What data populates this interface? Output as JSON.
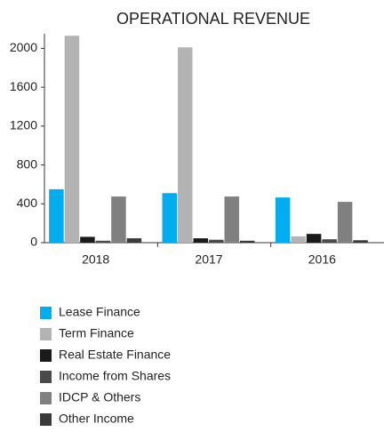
{
  "chart_data": {
    "type": "bar",
    "title": "OPERATIONAL REVENUE",
    "categories": [
      "2018",
      "2017",
      "2016"
    ],
    "series": [
      {
        "name": "Lease Finance",
        "color": "#00aeef",
        "values": [
          550,
          510,
          465
        ]
      },
      {
        "name": "Term Finance",
        "color": "#b3b3b3",
        "values": [
          2130,
          2010,
          65
        ]
      },
      {
        "name": "Real Estate Finance",
        "color": "#1a1a1a",
        "values": [
          60,
          45,
          90
        ]
      },
      {
        "name": "Income from Shares",
        "color": "#4a4a4a",
        "values": [
          20,
          30,
          35
        ]
      },
      {
        "name": "IDCP & Others",
        "color": "#808080",
        "values": [
          475,
          475,
          420
        ]
      },
      {
        "name": "Other Income",
        "color": "#3a3a3a",
        "values": [
          45,
          20,
          25
        ]
      }
    ],
    "ylim": [
      0,
      2150
    ],
    "yticks": [
      0,
      400,
      800,
      1200,
      1600,
      2000
    ]
  }
}
